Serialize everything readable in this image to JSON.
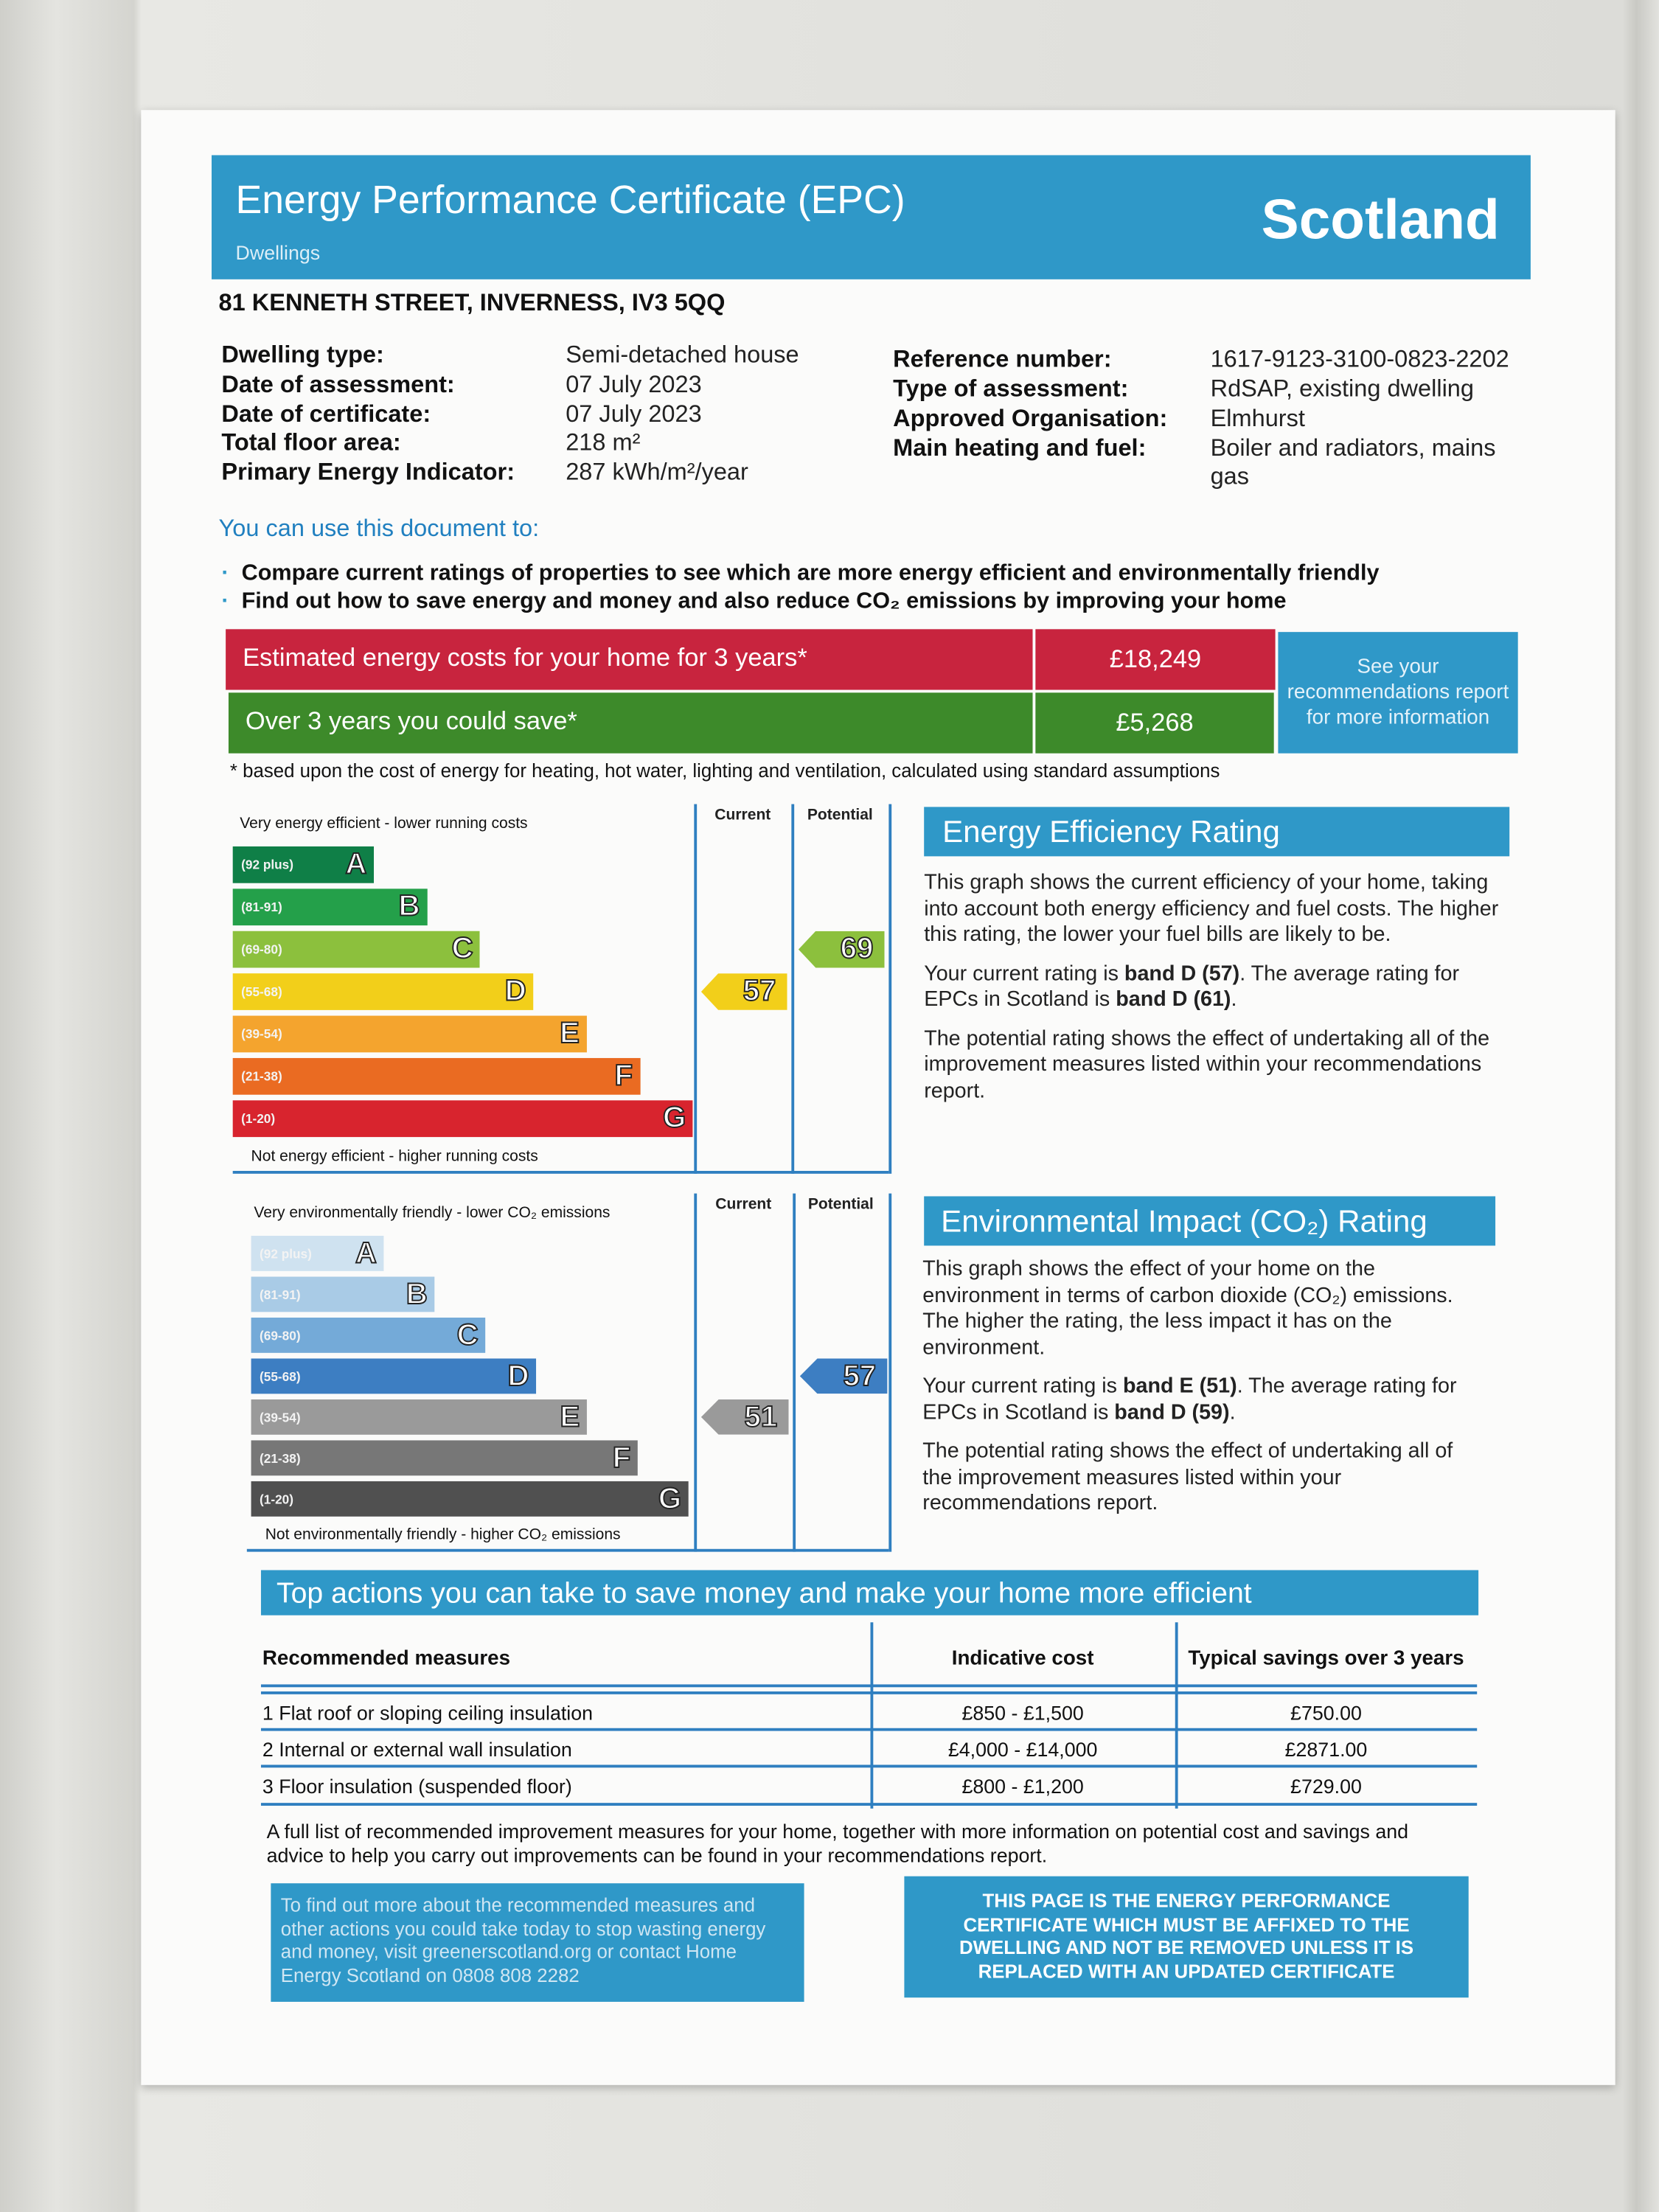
{
  "header": {
    "title": "Energy Performance Certificate (EPC)",
    "subtitle": "Dwellings",
    "region": "Scotland"
  },
  "address": "81 KENNETH STREET, INVERNESS, IV3 5QQ",
  "details": {
    "left": [
      {
        "label": "Dwelling type:",
        "value": "Semi-detached house"
      },
      {
        "label": "Date of assessment:",
        "value": "07 July 2023"
      },
      {
        "label": "Date of certificate:",
        "value": "07 July 2023"
      },
      {
        "label": "Total floor area:",
        "value": "218 m²"
      },
      {
        "label": "Primary Energy Indicator:",
        "value": "287 kWh/m²/year"
      }
    ],
    "right": [
      {
        "label": "Reference number:",
        "value": "1617-9123-3100-0823-2202"
      },
      {
        "label": "Type of assessment:",
        "value": "RdSAP, existing dwelling"
      },
      {
        "label": "Approved Organisation:",
        "value": "Elmhurst"
      },
      {
        "label": "Main heating and fuel:",
        "value": "Boiler and radiators, mains gas"
      }
    ]
  },
  "uses": {
    "heading": "You can use this document to:",
    "bullets": [
      "Compare current ratings of properties to see which are more energy efficient and environmentally friendly",
      "Find out how to save energy and money and also reduce CO₂ emissions by improving your home"
    ]
  },
  "costs": {
    "rows": [
      {
        "label": "Estimated energy costs for your home for 3 years*",
        "value": "£18,249"
      },
      {
        "label": "Over 3 years you could save*",
        "value": "£5,268"
      }
    ],
    "link": "See your recommendations report for more information",
    "footnote": "* based upon the cost of energy for heating, hot water, lighting and ventilation, calculated using standard assumptions"
  },
  "energy": {
    "top_label": "Very energy efficient - lower running costs",
    "bottom_label": "Not energy efficient - higher running costs",
    "current_label": "Current",
    "potential_label": "Potential",
    "current": 57,
    "potential": 69,
    "bands": [
      {
        "range": "(92 plus)",
        "letter": "A",
        "color": "#0f7f47"
      },
      {
        "range": "(81-91)",
        "letter": "B",
        "color": "#24a04a"
      },
      {
        "range": "(69-80)",
        "letter": "C",
        "color": "#8cc03d"
      },
      {
        "range": "(55-68)",
        "letter": "D",
        "color": "#f2cf1a"
      },
      {
        "range": "(39-54)",
        "letter": "E",
        "color": "#f4a42e"
      },
      {
        "range": "(21-38)",
        "letter": "F",
        "color": "#ea6b22"
      },
      {
        "range": "(1-20)",
        "letter": "G",
        "color": "#d8242e"
      }
    ],
    "heading": "Energy Efficiency Rating",
    "paragraphs": [
      "This graph shows the current efficiency of your home, taking into account both energy efficiency and fuel costs. The higher this rating, the lower your fuel bills are likely to be.",
      [
        "Your current rating is ",
        "band D (57)",
        ". The average rating for EPCs in Scotland is ",
        "band D (61)",
        "."
      ],
      "The potential rating shows the effect of undertaking all of the improvement measures listed within your recommendations report."
    ]
  },
  "environment": {
    "top_label": "Very environmentally friendly - lower CO₂ emissions",
    "bottom_label": "Not environmentally friendly - higher CO₂ emissions",
    "current_label": "Current",
    "potential_label": "Potential",
    "current": 51,
    "potential": 57,
    "bands": [
      {
        "range": "(92 plus)",
        "letter": "A",
        "color": "#cfe2f0"
      },
      {
        "range": "(81-91)",
        "letter": "B",
        "color": "#a9cbe6"
      },
      {
        "range": "(69-80)",
        "letter": "C",
        "color": "#74aad8"
      },
      {
        "range": "(55-68)",
        "letter": "D",
        "color": "#3d7ec2"
      },
      {
        "range": "(39-54)",
        "letter": "E",
        "color": "#9a9a9a"
      },
      {
        "range": "(21-38)",
        "letter": "F",
        "color": "#777777"
      },
      {
        "range": "(1-20)",
        "letter": "G",
        "color": "#505050"
      }
    ],
    "heading": "Environmental Impact (CO₂) Rating",
    "paragraphs": [
      "This graph shows the effect of your home on the environment in terms of carbon dioxide (CO₂) emissions. The higher the rating, the less impact it has on the environment.",
      [
        "Your current rating is ",
        "band E (51)",
        ". The average rating for EPCs in Scotland is ",
        "band D (59)",
        "."
      ],
      "The potential rating shows the effect of undertaking all of the improvement measures listed within your recommendations report."
    ]
  },
  "actions": {
    "heading": "Top actions you can take to save money and make your home more efficient",
    "columns": [
      "Recommended measures",
      "Indicative cost",
      "Typical savings over 3 years"
    ],
    "rows": [
      [
        "1 Flat roof or sloping ceiling insulation",
        "£850 - £1,500",
        "£750.00"
      ],
      [
        "2 Internal or external wall insulation",
        "£4,000 - £14,000",
        "£2871.00"
      ],
      [
        "3 Floor insulation (suspended floor)",
        "£800 - £1,200",
        "£729.00"
      ]
    ],
    "note": "A full list of recommended improvement measures for your home, together with more information on potential cost and savings and advice to help you carry out improvements can be found in your recommendations report."
  },
  "footer": {
    "advice": "To find out more about the recommended measures and other actions you could take today to stop wasting energy and money, visit greenerscotland.org or contact Home Energy Scotland on 0808 808 2282",
    "notice": "THIS PAGE IS THE ENERGY PERFORMANCE CERTIFICATE WHICH MUST BE AFFIXED TO THE DWELLING AND NOT BE REMOVED UNLESS IT IS REPLACED WITH AN UPDATED CERTIFICATE"
  }
}
